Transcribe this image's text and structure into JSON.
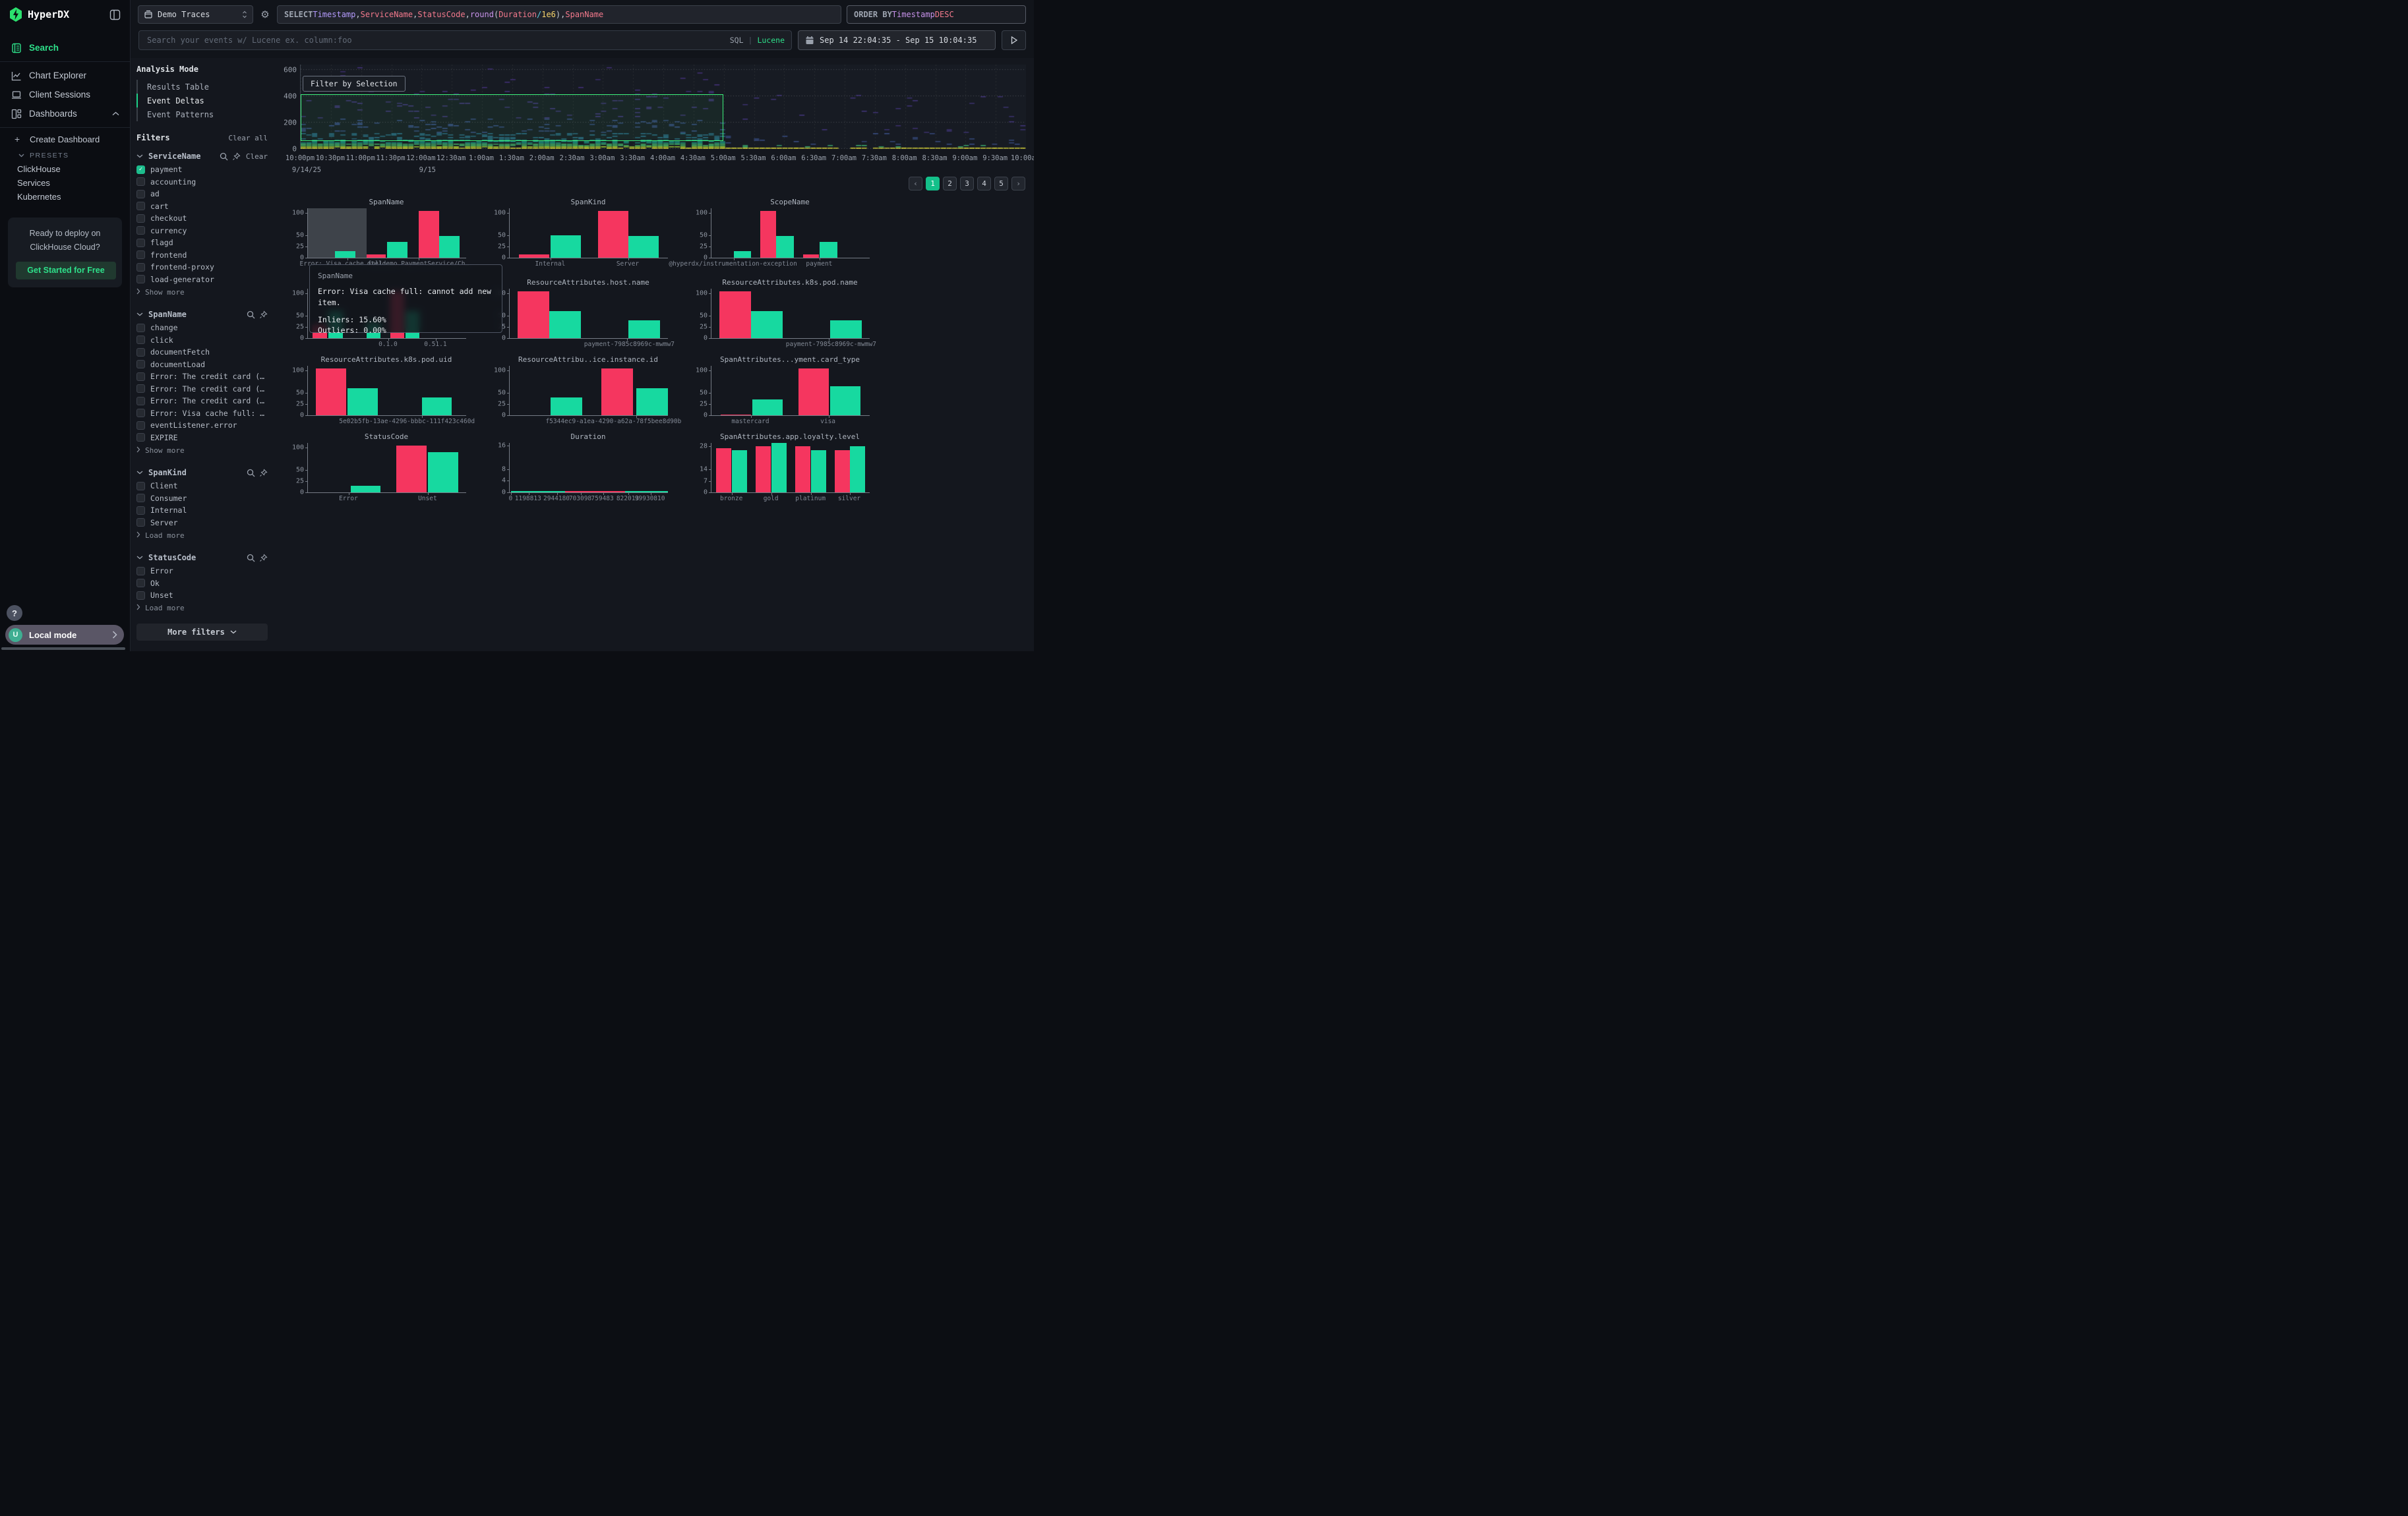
{
  "app": {
    "title": "HyperDX"
  },
  "topbar": {
    "source": {
      "label": "Demo Traces"
    },
    "select_query": {
      "tokens": [
        {
          "text": "SELECT ",
          "c": "kw"
        },
        {
          "text": "Timestamp",
          "c": "field"
        },
        {
          "text": ", ",
          "c": "plain"
        },
        {
          "text": "ServiceName",
          "c": "str"
        },
        {
          "text": ", ",
          "c": "plain"
        },
        {
          "text": "StatusCode",
          "c": "str"
        },
        {
          "text": ", ",
          "c": "plain"
        },
        {
          "text": "round",
          "c": "fn"
        },
        {
          "text": "(",
          "c": "plain"
        },
        {
          "text": "Duration",
          "c": "str"
        },
        {
          "text": " ",
          "c": "plain"
        },
        {
          "text": "/",
          "c": "op"
        },
        {
          "text": " ",
          "c": "plain"
        },
        {
          "text": "1e6",
          "c": "num"
        },
        {
          "text": ")",
          "c": "plain"
        },
        {
          "text": ", ",
          "c": "plain"
        },
        {
          "text": "SpanName",
          "c": "str"
        }
      ]
    },
    "order_by": {
      "tokens": [
        {
          "text": "ORDER BY ",
          "c": "kw"
        },
        {
          "text": "Timestamp ",
          "c": "fn"
        },
        {
          "text": "DESC",
          "c": "str"
        }
      ]
    },
    "search": {
      "placeholder": "Search your events w/ Lucene ex. column:foo",
      "sql": "SQL",
      "divider": "|",
      "lucene": "Lucene"
    },
    "time_range": "Sep 14 22:04:35 - Sep 15 10:04:35"
  },
  "sidebar": {
    "nav": [
      {
        "label": "Search",
        "active": true
      },
      {
        "label": "Chart Explorer"
      },
      {
        "label": "Client Sessions"
      },
      {
        "label": "Dashboards"
      }
    ],
    "create_dashboard": "Create Dashboard",
    "presets_label": "PRESETS",
    "presets": [
      "ClickHouse",
      "Services",
      "Kubernetes"
    ],
    "cloud_card": {
      "text": "Ready to deploy on ClickHouse Cloud?",
      "button": "Get Started for Free"
    },
    "help": "?",
    "local_mode": {
      "avatar": "U",
      "label": "Local mode"
    }
  },
  "filters": {
    "analysis_mode_title": "Analysis Mode",
    "modes": [
      {
        "label": "Results Table"
      },
      {
        "label": "Event Deltas",
        "active": true
      },
      {
        "label": "Event Patterns"
      }
    ],
    "filters_title": "Filters",
    "clear_all": "Clear all",
    "groups": [
      {
        "name": "ServiceName",
        "clear": "Clear",
        "more": "Show more",
        "options": [
          {
            "label": "payment",
            "checked": true
          },
          {
            "label": "accounting"
          },
          {
            "label": "ad"
          },
          {
            "label": "cart"
          },
          {
            "label": "checkout"
          },
          {
            "label": "currency"
          },
          {
            "label": "flagd"
          },
          {
            "label": "frontend"
          },
          {
            "label": "frontend-proxy"
          },
          {
            "label": "load-generator"
          }
        ]
      },
      {
        "name": "SpanName",
        "more": "Show more",
        "options": [
          {
            "label": "change"
          },
          {
            "label": "click"
          },
          {
            "label": "documentFetch"
          },
          {
            "label": "documentLoad"
          },
          {
            "label": "Error: The credit card (…"
          },
          {
            "label": "Error: The credit card (…"
          },
          {
            "label": "Error: The credit card (…"
          },
          {
            "label": "Error: Visa cache full: …"
          },
          {
            "label": "eventListener.error"
          },
          {
            "label": "EXPIRE"
          }
        ]
      },
      {
        "name": "SpanKind",
        "more": "Load more",
        "options": [
          {
            "label": "Client"
          },
          {
            "label": "Consumer"
          },
          {
            "label": "Internal"
          },
          {
            "label": "Server"
          }
        ]
      },
      {
        "name": "StatusCode",
        "more": "Load more",
        "options": [
          {
            "label": "Error"
          },
          {
            "label": "Ok"
          },
          {
            "label": "Unset"
          }
        ]
      }
    ],
    "more_filters": "More filters"
  },
  "pagination": {
    "prev": "‹",
    "pages": [
      "1",
      "2",
      "3",
      "4",
      "5"
    ],
    "active": "1",
    "next": "›"
  },
  "tooltip": {
    "header": "SpanName",
    "body": "Error: Visa cache full: cannot add new item.",
    "lines": [
      "Inliers: 15.60%",
      "Outliers: 0.00%"
    ]
  },
  "series_colors": {
    "inliers": "#17d9a0",
    "outliers": "#f5365f"
  },
  "chart_data": [
    {
      "type": "heatmap",
      "title": "",
      "button": "Filter by Selection",
      "y_ticks": [
        0,
        200,
        400,
        600
      ],
      "y_max": 640,
      "x_ticks": [
        "10:00pm",
        "10:30pm",
        "11:00pm",
        "11:30pm",
        "12:00am",
        "12:30am",
        "1:00am",
        "1:30am",
        "2:00am",
        "2:30am",
        "3:00am",
        "3:30am",
        "4:00am",
        "4:30am",
        "5:00am",
        "5:30am",
        "6:00am",
        "6:30am",
        "7:00am",
        "7:30am",
        "8:00am",
        "8:30am",
        "9:00am",
        "9:30am",
        "10:00am"
      ],
      "date_labels": [
        {
          "tick": 0,
          "label": "9/14/25"
        },
        {
          "tick": 4,
          "label": "9/15"
        }
      ],
      "selection": {
        "x0_frac": 0,
        "x1_frac": 0.583,
        "y_top": 415,
        "y_bottom": 60
      },
      "dense_until_frac": 0.583,
      "bands": [
        {
          "v0": 0,
          "v1": 12,
          "color": "#e9e436",
          "density": 1
        },
        {
          "v0": 12,
          "v1": 22,
          "color": "#a8db34",
          "density": 0.9
        },
        {
          "v0": 22,
          "v1": 45,
          "color": "#4ac16d",
          "density": 0.88
        },
        {
          "v0": 45,
          "v1": 75,
          "color": "#1f9e89",
          "density": 0.55
        },
        {
          "v0": 75,
          "v1": 125,
          "color": "#2c728e",
          "density": 0.3
        },
        {
          "v0": 125,
          "v1": 235,
          "color": "#3b518b",
          "density": 0.12
        },
        {
          "v0": 235,
          "v1": 440,
          "color": "#453781",
          "density": 0.045
        },
        {
          "v0": 440,
          "v1": 630,
          "color": "#46327e",
          "density": 0.015
        }
      ],
      "sparse_bands": [
        {
          "v0": 0,
          "v1": 12,
          "color": "#e9e436",
          "density": 1
        },
        {
          "v0": 12,
          "v1": 26,
          "color": "#3fb873",
          "density": 0.1
        },
        {
          "v0": 26,
          "v1": 120,
          "color": "#3b518b",
          "density": 0.045
        },
        {
          "v0": 120,
          "v1": 420,
          "color": "#453781",
          "density": 0.015
        }
      ]
    },
    {
      "type": "bar",
      "title": "SpanName",
      "grid": {
        "row": 0,
        "col": 0
      },
      "y_ticks": [
        0,
        25,
        50,
        100
      ],
      "y_max": 110,
      "hover_overlay": {
        "x": 0,
        "w": 37
      },
      "bars": [
        {
          "x": 17,
          "w": 13,
          "s": "inliers",
          "v": 15
        },
        {
          "x": 37,
          "w": 12,
          "s": "outliers",
          "v": 7
        },
        {
          "x": 50,
          "w": 13,
          "s": "inliers",
          "v": 35
        },
        {
          "x": 70,
          "w": 13,
          "s": "outliers",
          "v": 104
        },
        {
          "x": 83,
          "w": 13,
          "s": "inliers",
          "v": 48
        }
      ],
      "x_ticks": [
        {
          "pos": 25,
          "label": "Error: Visa cache full: …"
        },
        {
          "pos": 70,
          "label": "oteldemo.PaymentService/Ch…"
        }
      ]
    },
    {
      "type": "bar",
      "title": "SpanKind",
      "grid": {
        "row": 0,
        "col": 1
      },
      "y_ticks": [
        0,
        25,
        50,
        100
      ],
      "y_max": 110,
      "bars": [
        {
          "x": 6,
          "w": 19,
          "s": "outliers",
          "v": 7
        },
        {
          "x": 26,
          "w": 19,
          "s": "inliers",
          "v": 50
        },
        {
          "x": 56,
          "w": 19,
          "s": "outliers",
          "v": 104
        },
        {
          "x": 75,
          "w": 19,
          "s": "inliers",
          "v": 48
        }
      ],
      "x_ticks": [
        {
          "pos": 26,
          "label": "Internal"
        },
        {
          "pos": 75,
          "label": "Server"
        }
      ]
    },
    {
      "type": "bar",
      "title": "ScopeName",
      "grid": {
        "row": 0,
        "col": 2
      },
      "y_ticks": [
        0,
        25,
        50,
        100
      ],
      "y_max": 110,
      "bars": [
        {
          "x": 14,
          "w": 11,
          "s": "inliers",
          "v": 15
        },
        {
          "x": 31,
          "w": 10,
          "s": "outliers",
          "v": 104
        },
        {
          "x": 41,
          "w": 11,
          "s": "inliers",
          "v": 48
        },
        {
          "x": 58,
          "w": 10,
          "s": "outliers",
          "v": 7
        },
        {
          "x": 68.5,
          "w": 11,
          "s": "inliers",
          "v": 35
        }
      ],
      "x_ticks": [
        {
          "pos": 14,
          "label": "@hyperdx/instrumentation-exception"
        },
        {
          "pos": 68.5,
          "label": "payment"
        }
      ]
    },
    {
      "type": "bar",
      "title": "",
      "grid": {
        "row": 1,
        "col": 0
      },
      "y_ticks": [
        0,
        25,
        50,
        100
      ],
      "y_max": 110,
      "bars": [
        {
          "x": 3,
          "w": 9,
          "s": "outliers",
          "v": 30
        },
        {
          "x": 13,
          "w": 9,
          "s": "inliers",
          "v": 60
        },
        {
          "x": 37,
          "w": 9,
          "s": "inliers",
          "v": 35
        },
        {
          "x": 52,
          "w": 9,
          "s": "outliers",
          "v": 104
        },
        {
          "x": 61.5,
          "w": 9,
          "s": "inliers",
          "v": 60
        }
      ],
      "x_ticks": [
        {
          "pos": 51,
          "label": "0.1.0"
        },
        {
          "pos": 81,
          "label": "0.51.1"
        }
      ]
    },
    {
      "type": "bar",
      "title": "ResourceAttributes.host.name",
      "grid": {
        "row": 1,
        "col": 1
      },
      "y_ticks": [
        0,
        25,
        50,
        100
      ],
      "y_max": 110,
      "bars": [
        {
          "x": 5,
          "w": 20,
          "s": "outliers",
          "v": 104
        },
        {
          "x": 25,
          "w": 20,
          "s": "inliers",
          "v": 60
        },
        {
          "x": 75,
          "w": 20,
          "s": "inliers",
          "v": 40
        }
      ],
      "x_ticks": [
        {
          "pos": 74,
          "label": "payment-7985c8969c-mwmw7",
          "label_pos": 76
        }
      ]
    },
    {
      "type": "bar",
      "title": "ResourceAttributes.k8s.pod.name",
      "grid": {
        "row": 1,
        "col": 2
      },
      "y_ticks": [
        0,
        25,
        50,
        100
      ],
      "y_max": 110,
      "bars": [
        {
          "x": 5,
          "w": 20,
          "s": "outliers",
          "v": 104
        },
        {
          "x": 25,
          "w": 20,
          "s": "inliers",
          "v": 60
        },
        {
          "x": 75,
          "w": 20,
          "s": "inliers",
          "v": 40
        }
      ],
      "x_ticks": [
        {
          "pos": 74,
          "label": "payment-7985c8969c-mwmw7",
          "label_pos": 76
        }
      ]
    },
    {
      "type": "bar",
      "title": "ResourceAttributes.k8s.pod.uid",
      "grid": {
        "row": 2,
        "col": 0
      },
      "y_ticks": [
        0,
        25,
        50,
        100
      ],
      "y_max": 110,
      "bars": [
        {
          "x": 5,
          "w": 19,
          "s": "outliers",
          "v": 104
        },
        {
          "x": 25,
          "w": 19,
          "s": "inliers",
          "v": 60
        },
        {
          "x": 72,
          "w": 19,
          "s": "inliers",
          "v": 40
        }
      ],
      "x_ticks": [
        {
          "pos": 72,
          "label": "5e02b5fb-13ae-4296-bbbc-111f423c460d",
          "label_pos": 63
        }
      ]
    },
    {
      "type": "bar",
      "title": "ResourceAttribu..ice.instance.id",
      "grid": {
        "row": 2,
        "col": 1
      },
      "y_ticks": [
        0,
        25,
        50,
        100
      ],
      "y_max": 110,
      "bars": [
        {
          "x": 26,
          "w": 20,
          "s": "inliers",
          "v": 40
        },
        {
          "x": 58,
          "w": 20,
          "s": "outliers",
          "v": 104
        },
        {
          "x": 80,
          "w": 20,
          "s": "inliers",
          "v": 60
        }
      ],
      "x_ticks": [
        {
          "pos": 80,
          "label": "f5344ec9-a1ea-4290-a62a-78f5bee8d90b",
          "label_pos": 66
        }
      ]
    },
    {
      "type": "bar",
      "title": "SpanAttributes...yment.card_type",
      "grid": {
        "row": 2,
        "col": 2
      },
      "y_ticks": [
        0,
        25,
        50,
        100
      ],
      "y_max": 110,
      "bars": [
        {
          "x": 6,
          "w": 19,
          "s": "outliers",
          "v": 1.5
        },
        {
          "x": 26,
          "w": 19,
          "s": "inliers",
          "v": 35
        },
        {
          "x": 55,
          "w": 19,
          "s": "outliers",
          "v": 104
        },
        {
          "x": 75,
          "w": 19,
          "s": "inliers",
          "v": 65
        }
      ],
      "x_ticks": [
        {
          "pos": 25,
          "label": "mastercard"
        },
        {
          "pos": 74,
          "label": "visa"
        }
      ]
    },
    {
      "type": "bar",
      "title": "StatusCode",
      "grid": {
        "row": 3,
        "col": 0
      },
      "y_ticks": [
        0,
        25,
        50,
        100
      ],
      "y_max": 110,
      "bars": [
        {
          "x": 27,
          "w": 19,
          "s": "inliers",
          "v": 15
        },
        {
          "x": 56,
          "w": 19,
          "s": "outliers",
          "v": 104
        },
        {
          "x": 76,
          "w": 19,
          "s": "inliers",
          "v": 90
        }
      ],
      "x_ticks": [
        {
          "pos": 26,
          "label": "Error"
        },
        {
          "pos": 76,
          "label": "Unset"
        }
      ]
    },
    {
      "type": "bar",
      "title": "Duration",
      "grid": {
        "row": 3,
        "col": 1
      },
      "y_ticks": [
        0,
        4,
        8,
        16
      ],
      "y_max": 17,
      "bars": [
        {
          "x": 1,
          "w": 34,
          "s": "inliers",
          "v": 0.35
        },
        {
          "x": 35,
          "w": 38,
          "s": "outliers",
          "v": 0.35
        },
        {
          "x": 73,
          "w": 27,
          "s": "inliers",
          "v": 0.35
        }
      ],
      "x_ticks": [
        {
          "pos": 1,
          "label": "0"
        },
        {
          "pos": 12,
          "label": "1198813"
        },
        {
          "pos": 30,
          "label": "2944180"
        },
        {
          "pos": 45,
          "label": "703098"
        },
        {
          "pos": 59,
          "label": "759483"
        },
        {
          "pos": 75,
          "label": "822013"
        },
        {
          "pos": 89,
          "label": "99930810"
        }
      ]
    },
    {
      "type": "bar",
      "title": "SpanAttributes.app.loyalty.level",
      "grid": {
        "row": 3,
        "col": 2
      },
      "y_ticks": [
        0,
        7,
        14,
        28
      ],
      "y_max": 30,
      "bars": [
        {
          "x": 3,
          "w": 9.5,
          "s": "outliers",
          "v": 27
        },
        {
          "x": 13,
          "w": 9.5,
          "s": "inliers",
          "v": 25.5
        },
        {
          "x": 28,
          "w": 9.5,
          "s": "outliers",
          "v": 28
        },
        {
          "x": 38,
          "w": 9.5,
          "s": "inliers",
          "v": 30
        },
        {
          "x": 53,
          "w": 9.5,
          "s": "outliers",
          "v": 28
        },
        {
          "x": 63,
          "w": 9.5,
          "s": "inliers",
          "v": 25.5
        },
        {
          "x": 78,
          "w": 9.5,
          "s": "outliers",
          "v": 25.5
        },
        {
          "x": 87.5,
          "w": 9.5,
          "s": "inliers",
          "v": 28
        }
      ],
      "x_ticks": [
        {
          "pos": 13,
          "label": "bronze"
        },
        {
          "pos": 38,
          "label": "gold"
        },
        {
          "pos": 63,
          "label": "platinum"
        },
        {
          "pos": 87.5,
          "label": "silver"
        }
      ]
    }
  ]
}
